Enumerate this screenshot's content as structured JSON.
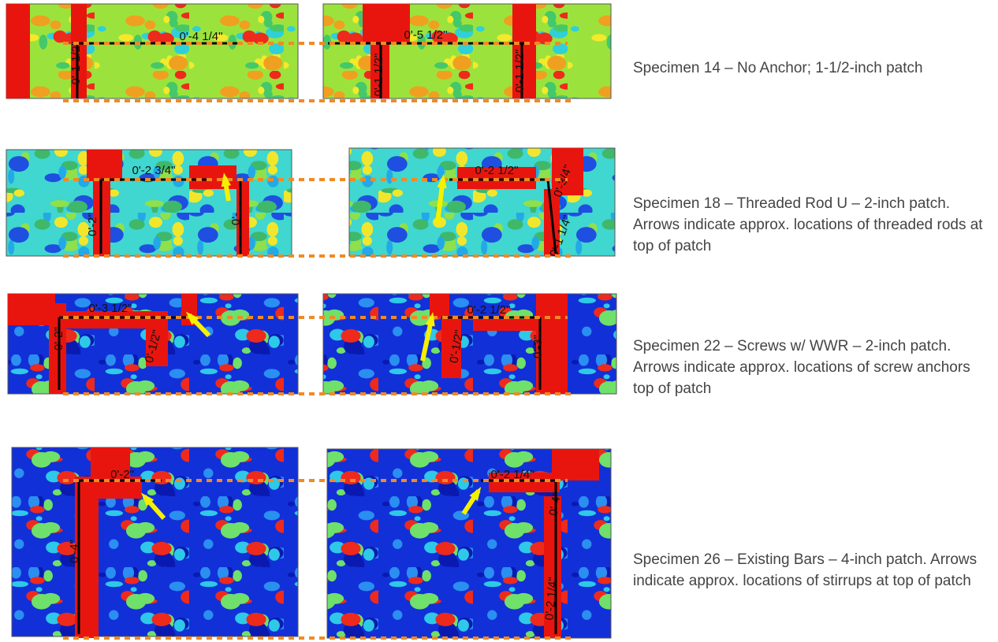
{
  "rows": [
    {
      "caption": "Specimen 14 – No Anchor; 1-1/2-inch patch",
      "panels": [
        {
          "labels": [
            "0'-4 1/4\"",
            "0'-1 1/2\""
          ]
        },
        {
          "labels": [
            "0'-5 1/2\"",
            "0'-1 1/2\"",
            "0'-1 1/2\""
          ]
        }
      ]
    },
    {
      "caption": "Specimen 18 – Threaded Rod U – 2-inch patch. Arrows indicate approx. locations of threaded rods at top of patch",
      "panels": [
        {
          "labels": [
            "0'-2 3/4\"",
            "0'-2\"",
            "0'-"
          ]
        },
        {
          "labels": [
            "0'-2 1/2\"",
            "0'-3/4\"",
            "0'-1 1/4\""
          ]
        }
      ]
    },
    {
      "caption": "Specimen 22 – Screws w/ WWR – 2-inch patch. Arrows indicate approx. locations of screw anchors top of patch",
      "panels": [
        {
          "labels": [
            "0'-3 1/2\"",
            "0'-2\"",
            "0'-1/2\""
          ]
        },
        {
          "labels": [
            "0'-2 1/2\"",
            "0'-1/2\"",
            "0'-3\""
          ]
        }
      ]
    },
    {
      "caption": "Specimen 26 – Existing Bars – 4-inch patch. Arrows indicate approx. locations of stirrups at top of patch",
      "panels": [
        {
          "labels": [
            "0'-2\"",
            "0'-4\""
          ]
        },
        {
          "labels": [
            "0'-2 1/4\"",
            "0'-4\"",
            "0'-2 1/4\""
          ]
        }
      ]
    }
  ]
}
